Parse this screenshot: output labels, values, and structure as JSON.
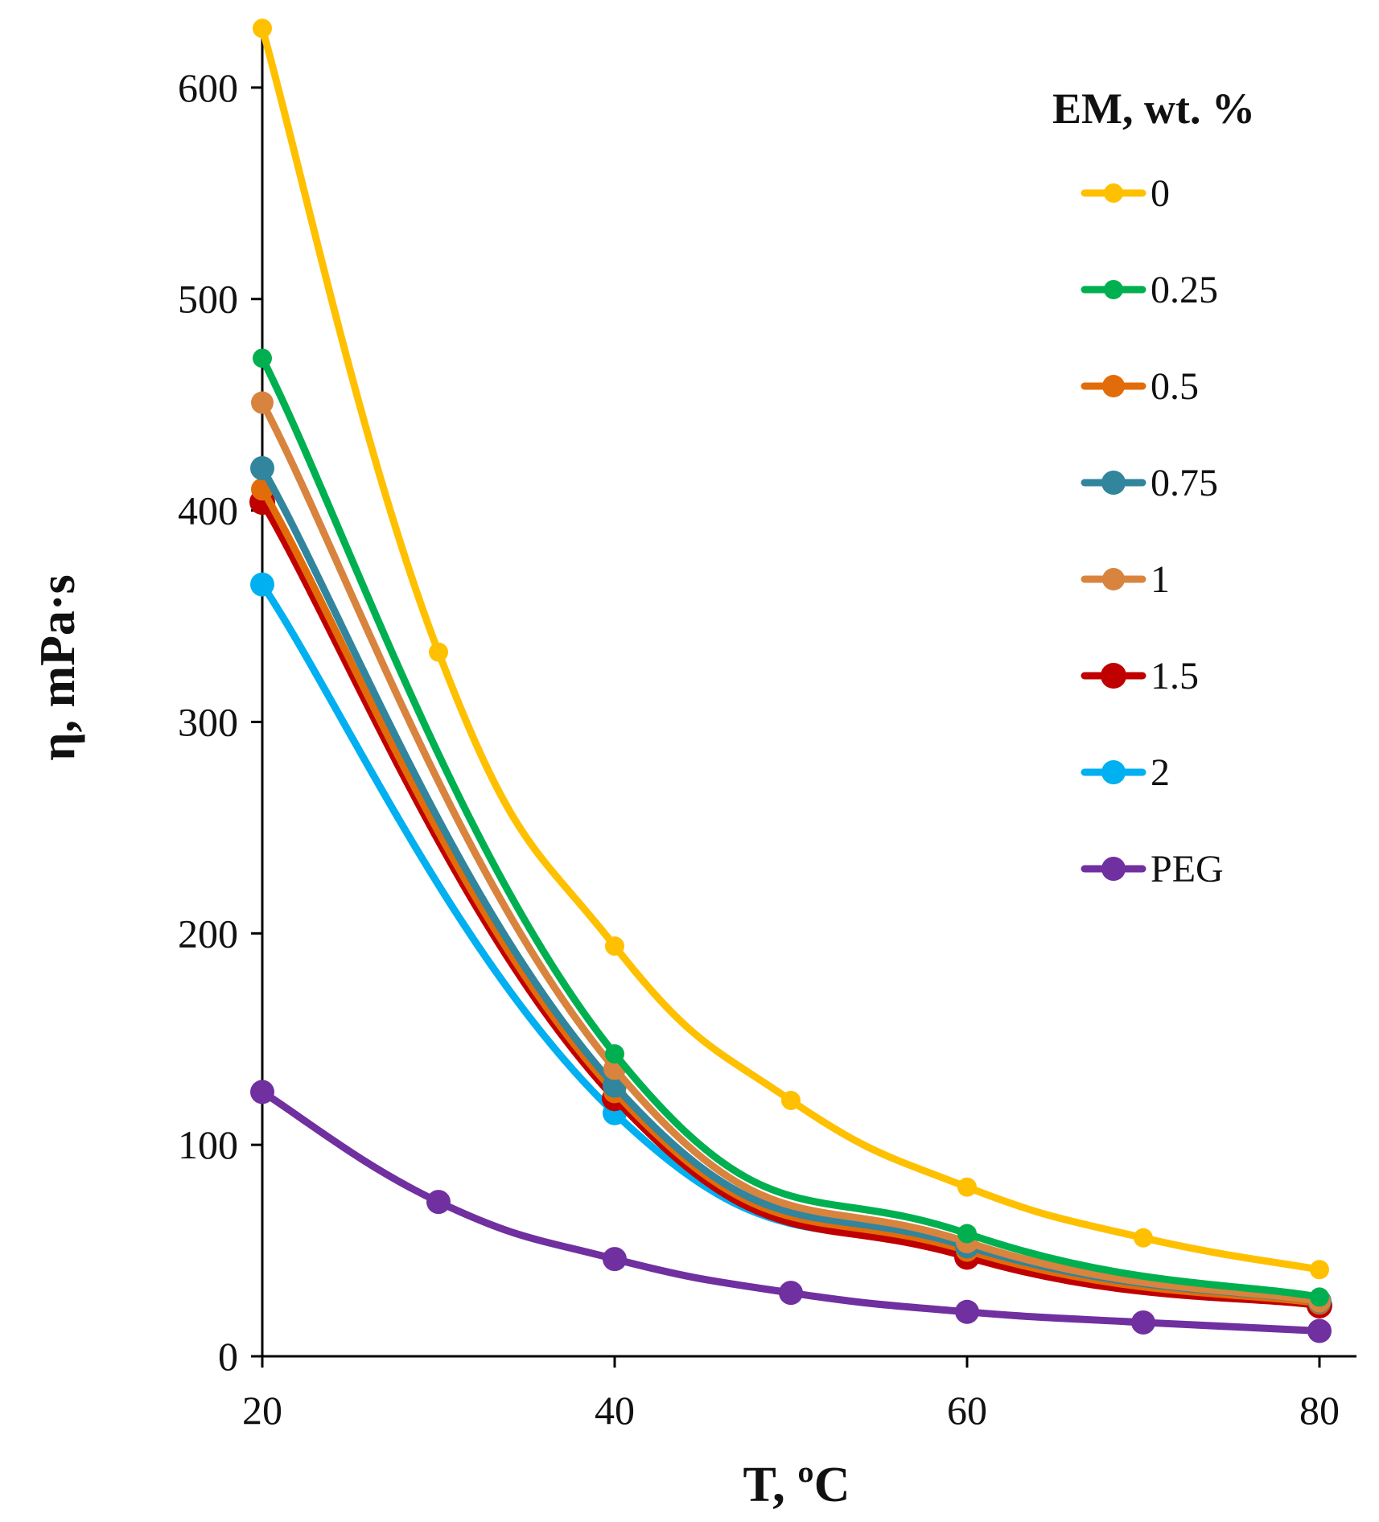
{
  "chart_data": {
    "type": "line",
    "xlabel": "T, ºC",
    "ylabel": "η, mPa·s",
    "xlim": [
      20,
      80
    ],
    "ylim": [
      0,
      630
    ],
    "xticks": [
      20,
      40,
      60,
      80
    ],
    "yticks": [
      0,
      100,
      200,
      300,
      400,
      500,
      600
    ],
    "legend_title": "EM, wt. %",
    "legend_position": "top-right",
    "series": [
      {
        "name": "0",
        "color": "#FFC000",
        "marker_size": 12,
        "points": [
          [
            20,
            628
          ],
          [
            30,
            333
          ],
          [
            40,
            194
          ],
          [
            50,
            121
          ],
          [
            60,
            80
          ],
          [
            70,
            56
          ],
          [
            80,
            41
          ]
        ]
      },
      {
        "name": "0.25",
        "color": "#00B050",
        "marker_size": 12,
        "points": [
          [
            20,
            472
          ],
          [
            40,
            143
          ],
          [
            60,
            58
          ],
          [
            80,
            28
          ]
        ]
      },
      {
        "name": "0.5",
        "color": "#E36C0A",
        "marker_size": 14,
        "points": [
          [
            20,
            410
          ],
          [
            40,
            125
          ],
          [
            60,
            50
          ],
          [
            80,
            25
          ]
        ]
      },
      {
        "name": "0.75",
        "color": "#31859C",
        "marker_size": 15,
        "points": [
          [
            20,
            420
          ],
          [
            40,
            128
          ],
          [
            60,
            52
          ],
          [
            80,
            26
          ]
        ]
      },
      {
        "name": "1",
        "color": "#D8843E",
        "marker_size": 14,
        "points": [
          [
            20,
            451
          ],
          [
            40,
            136
          ],
          [
            60,
            54
          ],
          [
            80,
            26
          ]
        ]
      },
      {
        "name": "1.5",
        "color": "#C00000",
        "marker_size": 16,
        "points": [
          [
            20,
            404
          ],
          [
            40,
            122
          ],
          [
            60,
            47
          ],
          [
            80,
            24
          ]
        ]
      },
      {
        "name": "2",
        "color": "#00B0F0",
        "marker_size": 15,
        "points": [
          [
            20,
            365
          ],
          [
            40,
            115
          ],
          [
            60,
            48
          ],
          [
            80,
            25
          ]
        ]
      },
      {
        "name": "PEG",
        "color": "#7030A0",
        "marker_size": 15,
        "points": [
          [
            20,
            125
          ],
          [
            30,
            73
          ],
          [
            40,
            46
          ],
          [
            50,
            30
          ],
          [
            60,
            21
          ],
          [
            70,
            16
          ],
          [
            80,
            12
          ]
        ]
      }
    ]
  }
}
